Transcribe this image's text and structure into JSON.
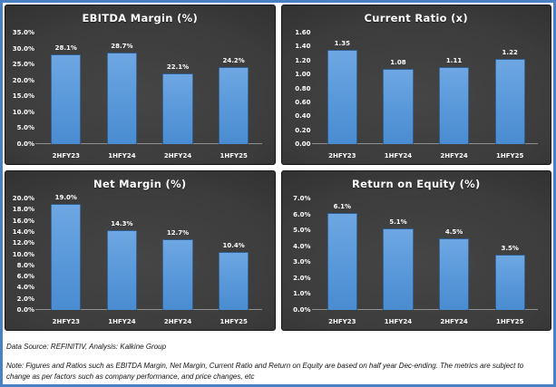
{
  "frame": {
    "border_color": "#4a80c4",
    "panel_bg_center": "#454545",
    "panel_bg_edge": "#1d1d1d",
    "bar_color": "#5a99da",
    "text_color": "#ffffff"
  },
  "footer": {
    "source_line": "Data Source: REFINITIV, Analysis: Kalkine Group",
    "note_line": "Note: Figures and Ratios such as EBITDA Margin, Net Margin, Current Ratio and Return on Equity are based on half year Dec-ending. The metrics are subject to change as per factors such as company performance, and price changes, etc"
  },
  "chart_data": [
    {
      "type": "bar",
      "title": "EBITDA Margin (%)",
      "categories": [
        "2HFY23",
        "1HFY24",
        "2HFY24",
        "1HFY25"
      ],
      "values": [
        28.1,
        28.7,
        22.1,
        24.2
      ],
      "labels": [
        "28.1%",
        "28.7%",
        "22.1%",
        "24.2%"
      ],
      "ylim": [
        0,
        35
      ],
      "yticks": [
        "0.0%",
        "5.0%",
        "10.0%",
        "15.0%",
        "20.0%",
        "25.0%",
        "30.0%",
        "35.0%"
      ],
      "grid": false,
      "legend": "none"
    },
    {
      "type": "bar",
      "title": "Current Ratio (x)",
      "categories": [
        "2HFY23",
        "1HFY24",
        "2HFY24",
        "1HFY25"
      ],
      "values": [
        1.35,
        1.08,
        1.11,
        1.22
      ],
      "labels": [
        "1.35",
        "1.08",
        "1.11",
        "1.22"
      ],
      "ylim": [
        0,
        1.6
      ],
      "yticks": [
        "0.00",
        "0.20",
        "0.40",
        "0.60",
        "0.80",
        "1.00",
        "1.20",
        "1.40",
        "1.60"
      ],
      "grid": false,
      "legend": "none"
    },
    {
      "type": "bar",
      "title": "Net Margin (%)",
      "categories": [
        "2HFY23",
        "1HFY24",
        "2HFY24",
        "1HFY25"
      ],
      "values": [
        19.0,
        14.3,
        12.7,
        10.4
      ],
      "labels": [
        "19.0%",
        "14.3%",
        "12.7%",
        "10.4%"
      ],
      "ylim": [
        0,
        20
      ],
      "yticks": [
        "0.0%",
        "2.0%",
        "4.0%",
        "6.0%",
        "8.0%",
        "10.0%",
        "12.0%",
        "14.0%",
        "16.0%",
        "18.0%",
        "20.0%"
      ],
      "grid": false,
      "legend": "none"
    },
    {
      "type": "bar",
      "title": "Return on Equity (%)",
      "categories": [
        "2HFY23",
        "1HFY24",
        "2HFY24",
        "1HFY25"
      ],
      "values": [
        6.1,
        5.1,
        4.5,
        3.5
      ],
      "labels": [
        "6.1%",
        "5.1%",
        "4.5%",
        "3.5%"
      ],
      "ylim": [
        0,
        7
      ],
      "yticks": [
        "0.0%",
        "1.0%",
        "2.0%",
        "3.0%",
        "4.0%",
        "5.0%",
        "6.0%",
        "7.0%"
      ],
      "grid": false,
      "legend": "none"
    }
  ]
}
